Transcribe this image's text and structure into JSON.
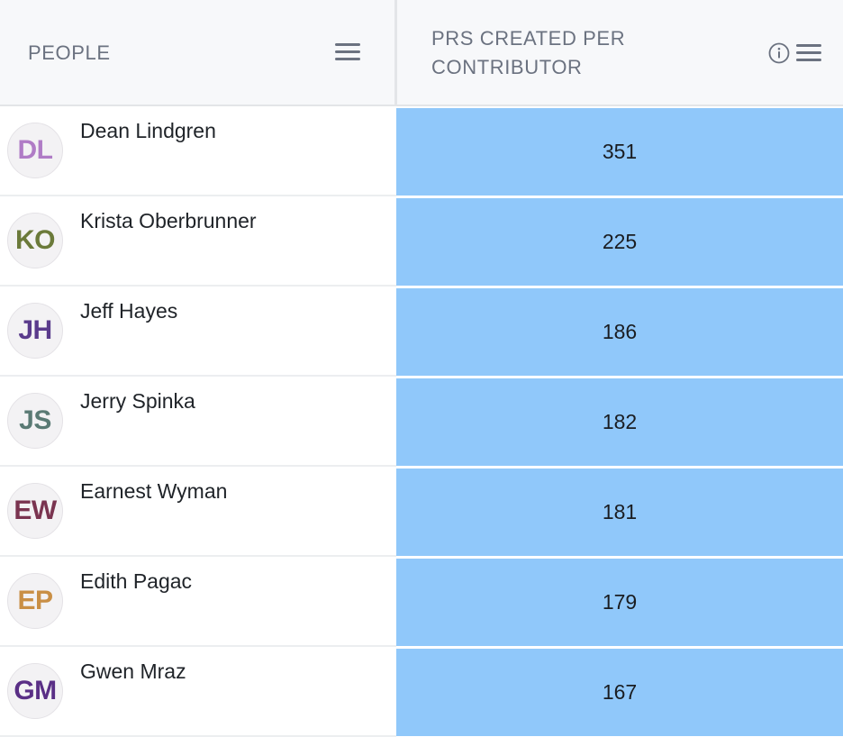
{
  "columns": {
    "people": "PEOPLE",
    "metric": "PRS CREATED PER CONTRIBUTOR"
  },
  "cell_color": "#90c8fa",
  "rows": [
    {
      "initials": "DL",
      "name": "Dean Lindgren",
      "value": "351",
      "avatar_color": "#b07cc6"
    },
    {
      "initials": "KO",
      "name": "Krista Oberbrunner",
      "value": "225",
      "avatar_color": "#6b7a3a"
    },
    {
      "initials": "JH",
      "name": "Jeff Hayes",
      "value": "186",
      "avatar_color": "#5a3b8c"
    },
    {
      "initials": "JS",
      "name": "Jerry Spinka",
      "value": "182",
      "avatar_color": "#5a7a74"
    },
    {
      "initials": "EW",
      "name": "Earnest Wyman",
      "value": "181",
      "avatar_color": "#7a3450"
    },
    {
      "initials": "EP",
      "name": "Edith Pagac",
      "value": "179",
      "avatar_color": "#c98f45"
    },
    {
      "initials": "GM",
      "name": "Gwen Mraz",
      "value": "167",
      "avatar_color": "#5a2f86"
    }
  ]
}
